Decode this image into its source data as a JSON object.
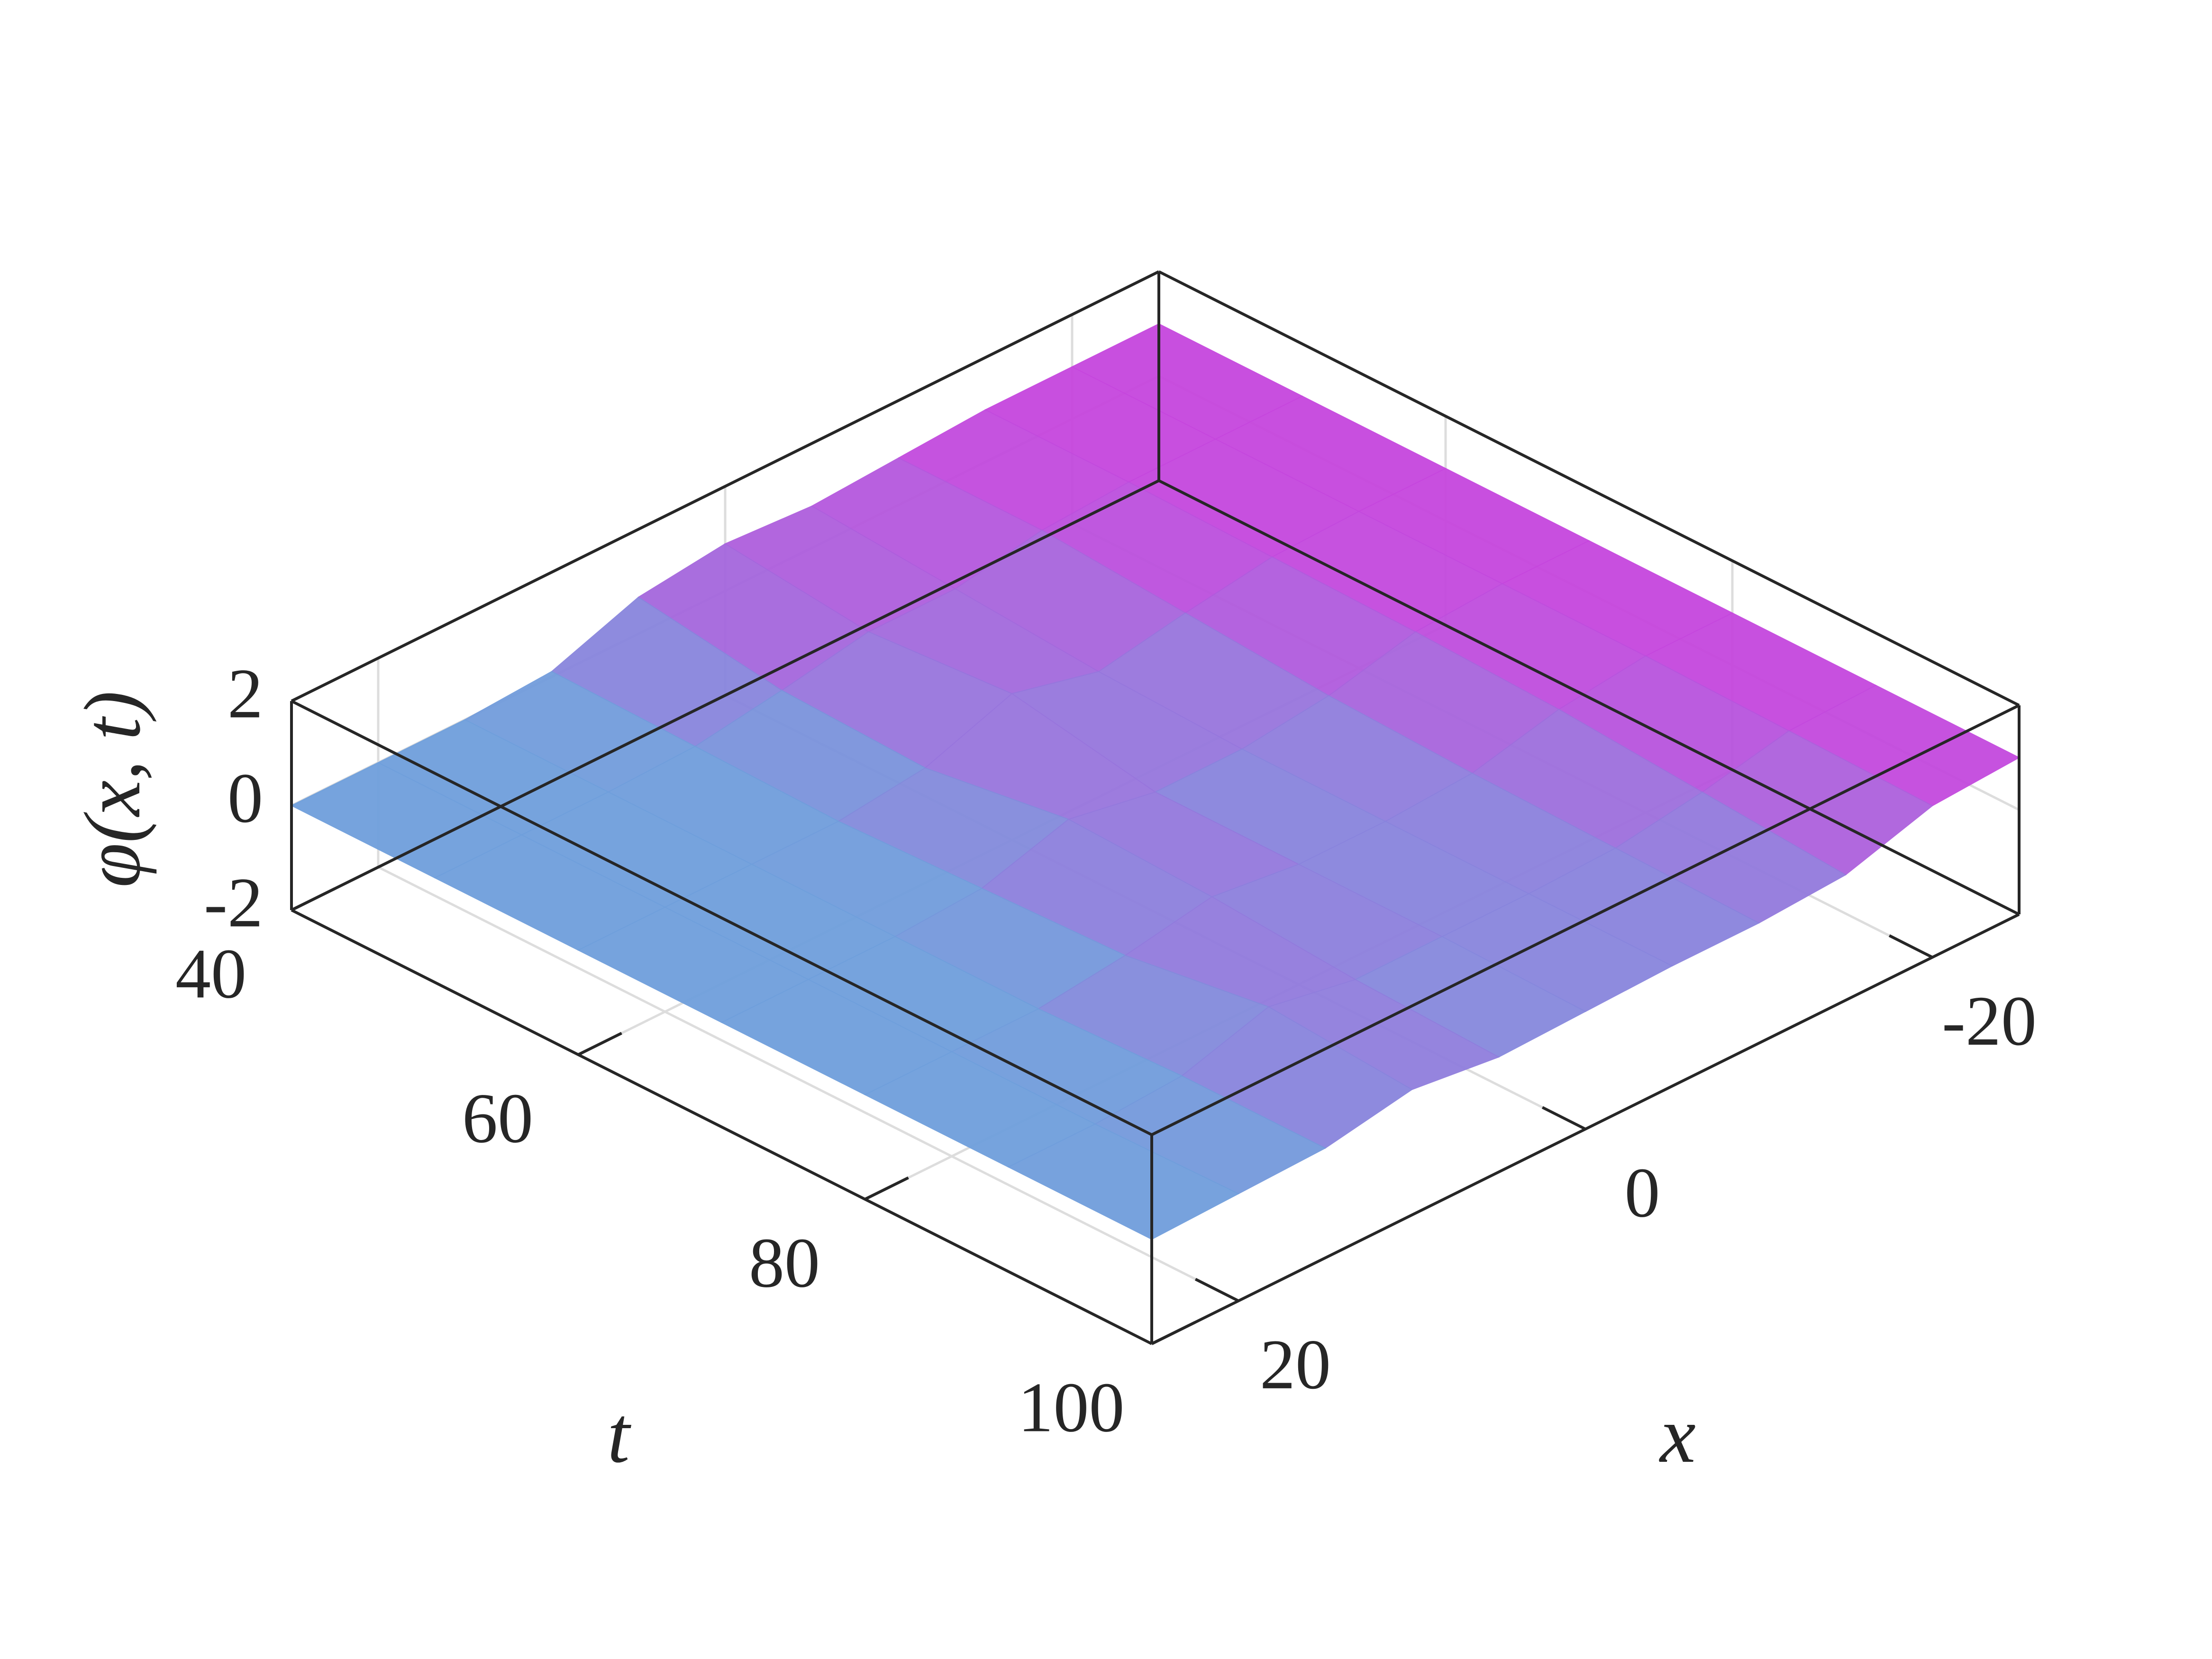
{
  "chart_data": {
    "type": "surface",
    "xlabel": "x",
    "ylabel": "t",
    "zlabel": "φ(x, t)",
    "x": [
      -25,
      -20,
      -15,
      -10,
      -5,
      0,
      5,
      10,
      15,
      20,
      25
    ],
    "t": [
      40,
      50,
      60,
      70,
      80,
      90,
      100
    ],
    "z": [
      [
        1,
        1,
        1,
        0.9,
        0.8,
        0.9,
        0.7,
        0.1,
        0,
        0,
        0
      ],
      [
        1,
        1,
        1,
        0.9,
        0.6,
        0.6,
        0.3,
        0.05,
        0,
        0,
        0
      ],
      [
        1,
        1,
        0.95,
        0.7,
        0.4,
        0.8,
        0.2,
        0,
        0,
        0,
        0
      ],
      [
        1,
        1,
        0.9,
        0.5,
        0.3,
        0.3,
        0.6,
        0.1,
        0,
        0,
        0
      ],
      [
        1,
        1,
        0.8,
        0.4,
        0.3,
        0.3,
        0.5,
        0.2,
        0,
        0,
        0
      ],
      [
        1,
        0.95,
        0.6,
        0.35,
        0.3,
        0.3,
        0.3,
        0.6,
        0.1,
        0,
        0
      ],
      [
        1,
        0.9,
        0.4,
        0.3,
        0.3,
        0.25,
        0.2,
        0.4,
        0.1,
        0.05,
        0
      ]
    ],
    "colormap": [
      "#6f9fdc",
      "#c646de"
    ],
    "xlim": [
      -25,
      25
    ],
    "xticks": [
      -20,
      0,
      20
    ],
    "ylim": [
      40,
      100
    ],
    "yticks": [
      40,
      60,
      80,
      100
    ],
    "zlim": [
      -2,
      2
    ],
    "zticks": [
      -2,
      0,
      2
    ],
    "grid": true
  }
}
